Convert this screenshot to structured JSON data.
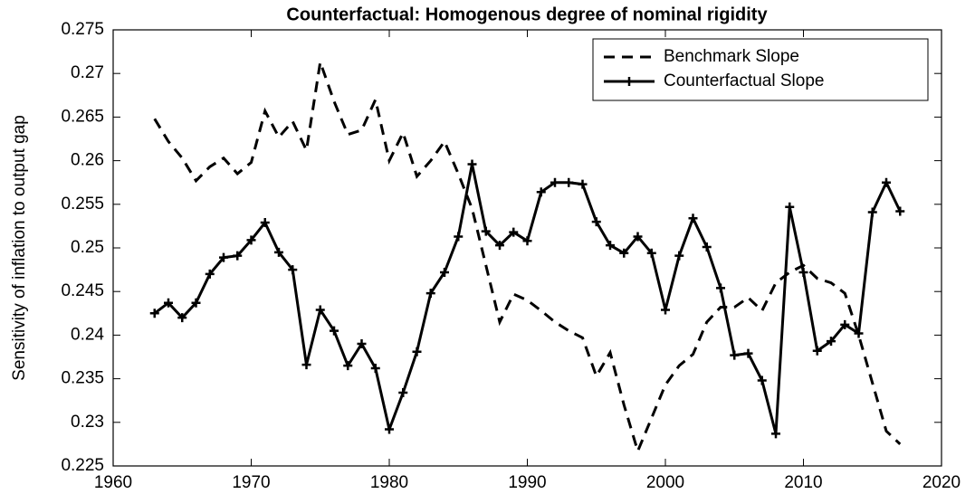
{
  "chart_data": {
    "type": "line",
    "title": "Counterfactual: Homogenous degree of nominal rigidity",
    "y_label": "Sensitivity of inflation to output gap",
    "x": [
      1963,
      1964,
      1965,
      1966,
      1967,
      1968,
      1969,
      1970,
      1971,
      1972,
      1973,
      1974,
      1975,
      1976,
      1977,
      1978,
      1979,
      1980,
      1981,
      1982,
      1983,
      1984,
      1985,
      1986,
      1987,
      1988,
      1989,
      1990,
      1991,
      1992,
      1993,
      1994,
      1995,
      1996,
      1997,
      1998,
      1999,
      2000,
      2001,
      2002,
      2003,
      2004,
      2005,
      2006,
      2007,
      2008,
      2009,
      2010,
      2011,
      2012,
      2013,
      2014,
      2015,
      2016,
      2017
    ],
    "series": [
      {
        "name": "Benchmark Slope",
        "color": "#000000",
        "style": "dashed",
        "values": [
          0.2648,
          0.2622,
          0.2603,
          0.2577,
          0.2593,
          0.2603,
          0.2585,
          0.2598,
          0.2657,
          0.2627,
          0.2645,
          0.2612,
          0.2713,
          0.2668,
          0.263,
          0.2635,
          0.267,
          0.26,
          0.2632,
          0.2582,
          0.26,
          0.2622,
          0.2585,
          0.2545,
          0.248,
          0.2415,
          0.2447,
          0.244,
          0.2428,
          0.2415,
          0.2405,
          0.2397,
          0.2353,
          0.238,
          0.232,
          0.2267,
          0.2305,
          0.2343,
          0.2365,
          0.2378,
          0.2415,
          0.2432,
          0.2432,
          0.2443,
          0.2428,
          0.246,
          0.2472,
          0.248,
          0.2465,
          0.246,
          0.2448,
          0.24,
          0.2345,
          0.229,
          0.2275
        ]
      },
      {
        "name": "Counterfactual Slope",
        "color": "#000000",
        "style": "solid",
        "marker": "+",
        "values": [
          0.2425,
          0.2437,
          0.242,
          0.2437,
          0.247,
          0.2489,
          0.2491,
          0.2509,
          0.2529,
          0.2495,
          0.2475,
          0.2366,
          0.2429,
          0.2405,
          0.2365,
          0.239,
          0.2362,
          0.2292,
          0.2334,
          0.2381,
          0.2448,
          0.2472,
          0.2513,
          0.2596,
          0.2519,
          0.2503,
          0.2518,
          0.2508,
          0.2564,
          0.2575,
          0.2575,
          0.2573,
          0.253,
          0.2503,
          0.2494,
          0.2513,
          0.2494,
          0.2429,
          0.2491,
          0.2534,
          0.2501,
          0.2454,
          0.2377,
          0.2379,
          0.2348,
          0.2287,
          0.2547,
          0.2472,
          0.2382,
          0.2393,
          0.2412,
          0.2402,
          0.2541,
          0.2575,
          0.2542
        ]
      }
    ],
    "xlim": [
      1960,
      2020
    ],
    "xticks": [
      1960,
      1970,
      1980,
      1990,
      2000,
      2010,
      2020
    ],
    "ylim": [
      0.225,
      0.275
    ],
    "yticks": [
      0.225,
      0.23,
      0.235,
      0.24,
      0.245,
      0.25,
      0.255,
      0.26,
      0.265,
      0.27,
      0.275
    ],
    "grid": false,
    "legend": "upper right"
  }
}
